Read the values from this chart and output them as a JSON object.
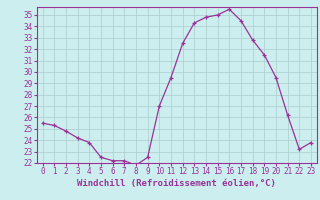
{
  "hours": [
    0,
    1,
    2,
    3,
    4,
    5,
    6,
    7,
    8,
    9,
    10,
    11,
    12,
    13,
    14,
    15,
    16,
    17,
    18,
    19,
    20,
    21,
    22,
    23
  ],
  "values": [
    25.5,
    25.3,
    24.8,
    24.2,
    23.8,
    22.5,
    22.2,
    22.2,
    21.8,
    22.5,
    27.0,
    29.5,
    32.5,
    34.3,
    34.8,
    35.0,
    35.5,
    34.5,
    32.8,
    31.5,
    29.5,
    26.2,
    23.2,
    23.8
  ],
  "ylim": [
    22,
    35.7
  ],
  "yticks": [
    22,
    23,
    24,
    25,
    26,
    27,
    28,
    29,
    30,
    31,
    32,
    33,
    34,
    35
  ],
  "xticks": [
    0,
    1,
    2,
    3,
    4,
    5,
    6,
    7,
    8,
    9,
    10,
    11,
    12,
    13,
    14,
    15,
    16,
    17,
    18,
    19,
    20,
    21,
    22,
    23
  ],
  "xlabel": "Windchill (Refroidissement éolien,°C)",
  "line_color": "#993399",
  "marker": "+",
  "bg_color": "#cceeee",
  "grid_color": "#aacccc",
  "tick_color": "#993399",
  "axis_color": "#993399",
  "label_fontsize": 5.5,
  "xlabel_fontsize": 6.5
}
